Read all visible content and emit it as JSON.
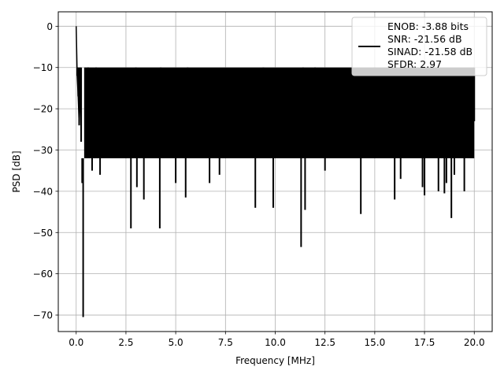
{
  "chart_data": {
    "type": "line",
    "title": "",
    "xlabel": "Frequency [MHz]",
    "ylabel": "PSD [dB]",
    "xlim": [
      -0.9,
      20.9
    ],
    "ylim": [
      -74,
      3.5
    ],
    "grid": true,
    "legend_placement": "top-right",
    "xticks": [
      0.0,
      2.5,
      5.0,
      7.5,
      10.0,
      12.5,
      15.0,
      17.5,
      20.0
    ],
    "xtick_labels": [
      "0.0",
      "2.5",
      "5.0",
      "7.5",
      "10.0",
      "12.5",
      "15.0",
      "17.5",
      "20.0"
    ],
    "yticks": [
      0,
      -10,
      -20,
      -30,
      -40,
      -50,
      -60,
      -70
    ],
    "ytick_labels": [
      "0",
      "−10",
      "−20",
      "−30",
      "−40",
      "−50",
      "−60",
      "−70"
    ],
    "legend": {
      "entries": [
        "ENOB: -3.88 bits",
        "SNR: -21.56 dB",
        "SINAD: -21.58 dB",
        "SFDR: 2.97"
      ]
    },
    "series": [
      {
        "color": "#000000",
        "noise_band": {
          "x": [
            0.4,
            20.0
          ],
          "y_upper": -10,
          "y_lower": -32
        },
        "x": [
          0.0,
          0.05,
          0.1,
          0.15,
          0.2,
          0.25,
          0.3,
          0.35,
          0.6,
          0.8,
          1.0,
          1.2,
          2.75,
          3.0,
          3.05,
          3.4,
          4.2,
          4.25,
          5.0,
          5.5,
          5.6,
          6.7,
          7.2,
          9.0,
          9.4,
          9.9,
          11.3,
          11.4,
          11.5,
          12.0,
          12.5,
          14.3,
          15.0,
          16.0,
          16.3,
          17.4,
          17.5,
          18.2,
          18.5,
          18.6,
          18.85,
          19.0,
          19.5,
          20.0
        ],
        "y": [
          0,
          -12,
          -17,
          -24,
          -13,
          -28,
          -38,
          -70.5,
          -20,
          -35,
          -18,
          -36,
          -49,
          -20,
          -39,
          -42,
          -49,
          -20,
          -38,
          -41.5,
          -18,
          -38,
          -36,
          -44,
          -30,
          -44,
          -53.5,
          -19,
          -44.5,
          -20,
          -35,
          -45.5,
          -24,
          -42,
          -37,
          -39,
          -41,
          -40,
          -40.5,
          -38,
          -46.5,
          -36,
          -40,
          -23
        ]
      }
    ]
  }
}
